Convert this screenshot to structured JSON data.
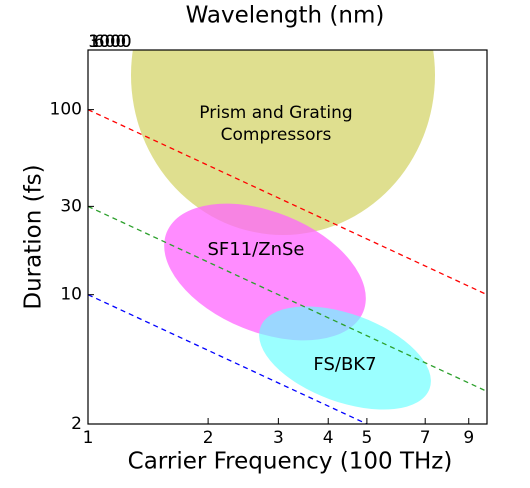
{
  "chart_data": {
    "type": "line",
    "log_x": true,
    "log_y": true,
    "title": "Wavelength (nm)",
    "x_label": "Carrier Frequency (100 THz)",
    "y_label": "Duration (fs)",
    "xlim": [
      1,
      10
    ],
    "ylim": [
      2,
      210
    ],
    "xticks": [
      1,
      2,
      3,
      4,
      5,
      7,
      9
    ],
    "yticks": [
      2,
      10,
      30,
      100
    ],
    "x2ticks": [
      3000,
      1000,
      600
    ],
    "series": [
      {
        "color": "#ff0000",
        "x": [
          1,
          10
        ],
        "values": [
          100,
          10
        ]
      },
      {
        "color": "#2ca02c",
        "x": [
          1,
          10
        ],
        "values": [
          30,
          3
        ]
      },
      {
        "color": "#0000ff",
        "x": [
          1,
          5
        ],
        "values": [
          10,
          2
        ]
      }
    ],
    "regions": [
      "Prism and Grating\nCompressors",
      "SF11/ZnSe",
      "FS/BK7"
    ]
  }
}
